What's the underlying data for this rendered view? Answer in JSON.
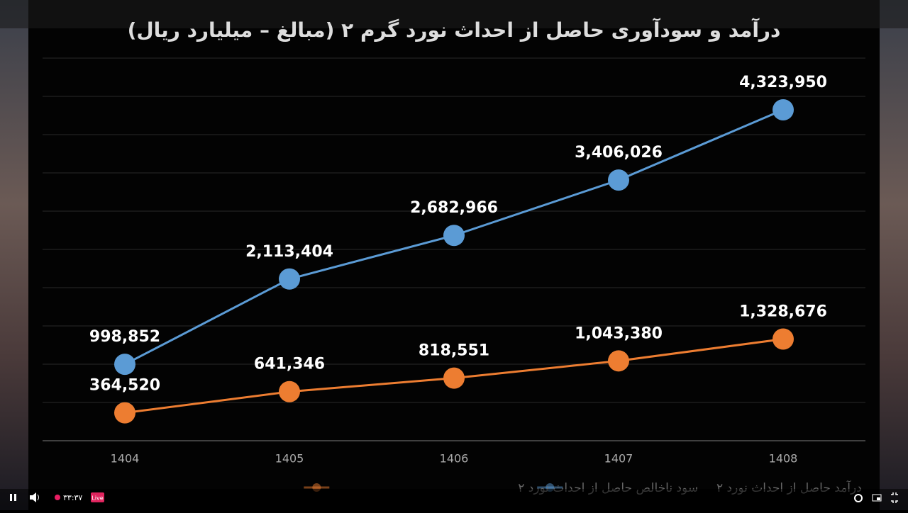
{
  "chart_data": {
    "type": "line",
    "title": "درآمد و سودآوری حاصل از احداث نورد گرم ۲ (مبالغ – میلیارد ریال)",
    "categories": [
      "1404",
      "1405",
      "1406",
      "1407",
      "1408"
    ],
    "series": [
      {
        "name": "درآمد حاصل از احداث نورد ۲",
        "color": "#5b9bd5",
        "values": [
          998852,
          2113404,
          2682966,
          3406026,
          4323950
        ],
        "value_labels": [
          "998,852",
          "2,113,404",
          "2,682,966",
          "3,406,026",
          "4,323,950"
        ]
      },
      {
        "name": "سود ناخالص حاصل از احداث نورد ۲",
        "color": "#ed7d31",
        "values": [
          364520,
          641346,
          818551,
          1043380,
          1328676
        ],
        "value_labels": [
          "364,520",
          "641,346",
          "818,551",
          "1,043,380",
          "1,328,676"
        ]
      }
    ],
    "ylim": [
      0,
      5000000
    ],
    "yticks": [
      0,
      500000,
      1000000,
      1500000,
      2000000,
      2500000,
      3000000,
      3500000,
      4000000,
      4500000,
      5000000
    ],
    "grid": true,
    "legend": "bottom"
  },
  "player": {
    "time": "۳۳:۳۷",
    "live": "Live"
  }
}
